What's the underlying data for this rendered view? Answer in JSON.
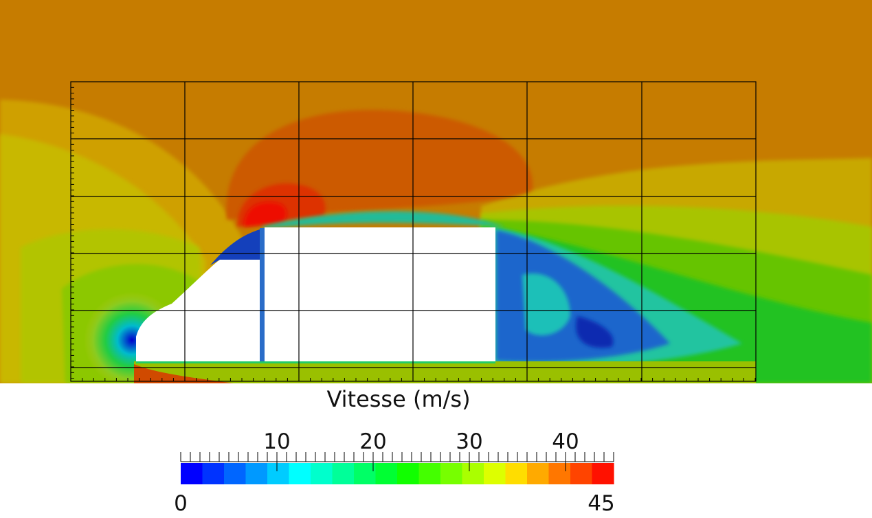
{
  "chart_data": {
    "type": "heatmap",
    "title": "Vitesse (m/s)",
    "field": "velocity magnitude around vehicle profile",
    "colorbar": {
      "min": 0,
      "max": 45,
      "ticks": [
        10,
        20,
        30,
        40
      ],
      "min_label": "0",
      "max_label": "45",
      "colors": [
        "#0000ff",
        "#0033ff",
        "#0066ff",
        "#0099ff",
        "#00ccff",
        "#00ffff",
        "#00ffcc",
        "#00ff99",
        "#00ff66",
        "#00ff33",
        "#11ff00",
        "#44ff00",
        "#77ff00",
        "#aaff00",
        "#ddff00",
        "#ffdd00",
        "#ffaa00",
        "#ff7700",
        "#ff4400",
        "#ff1100"
      ]
    },
    "grid": true,
    "legend_position": "bottom"
  }
}
